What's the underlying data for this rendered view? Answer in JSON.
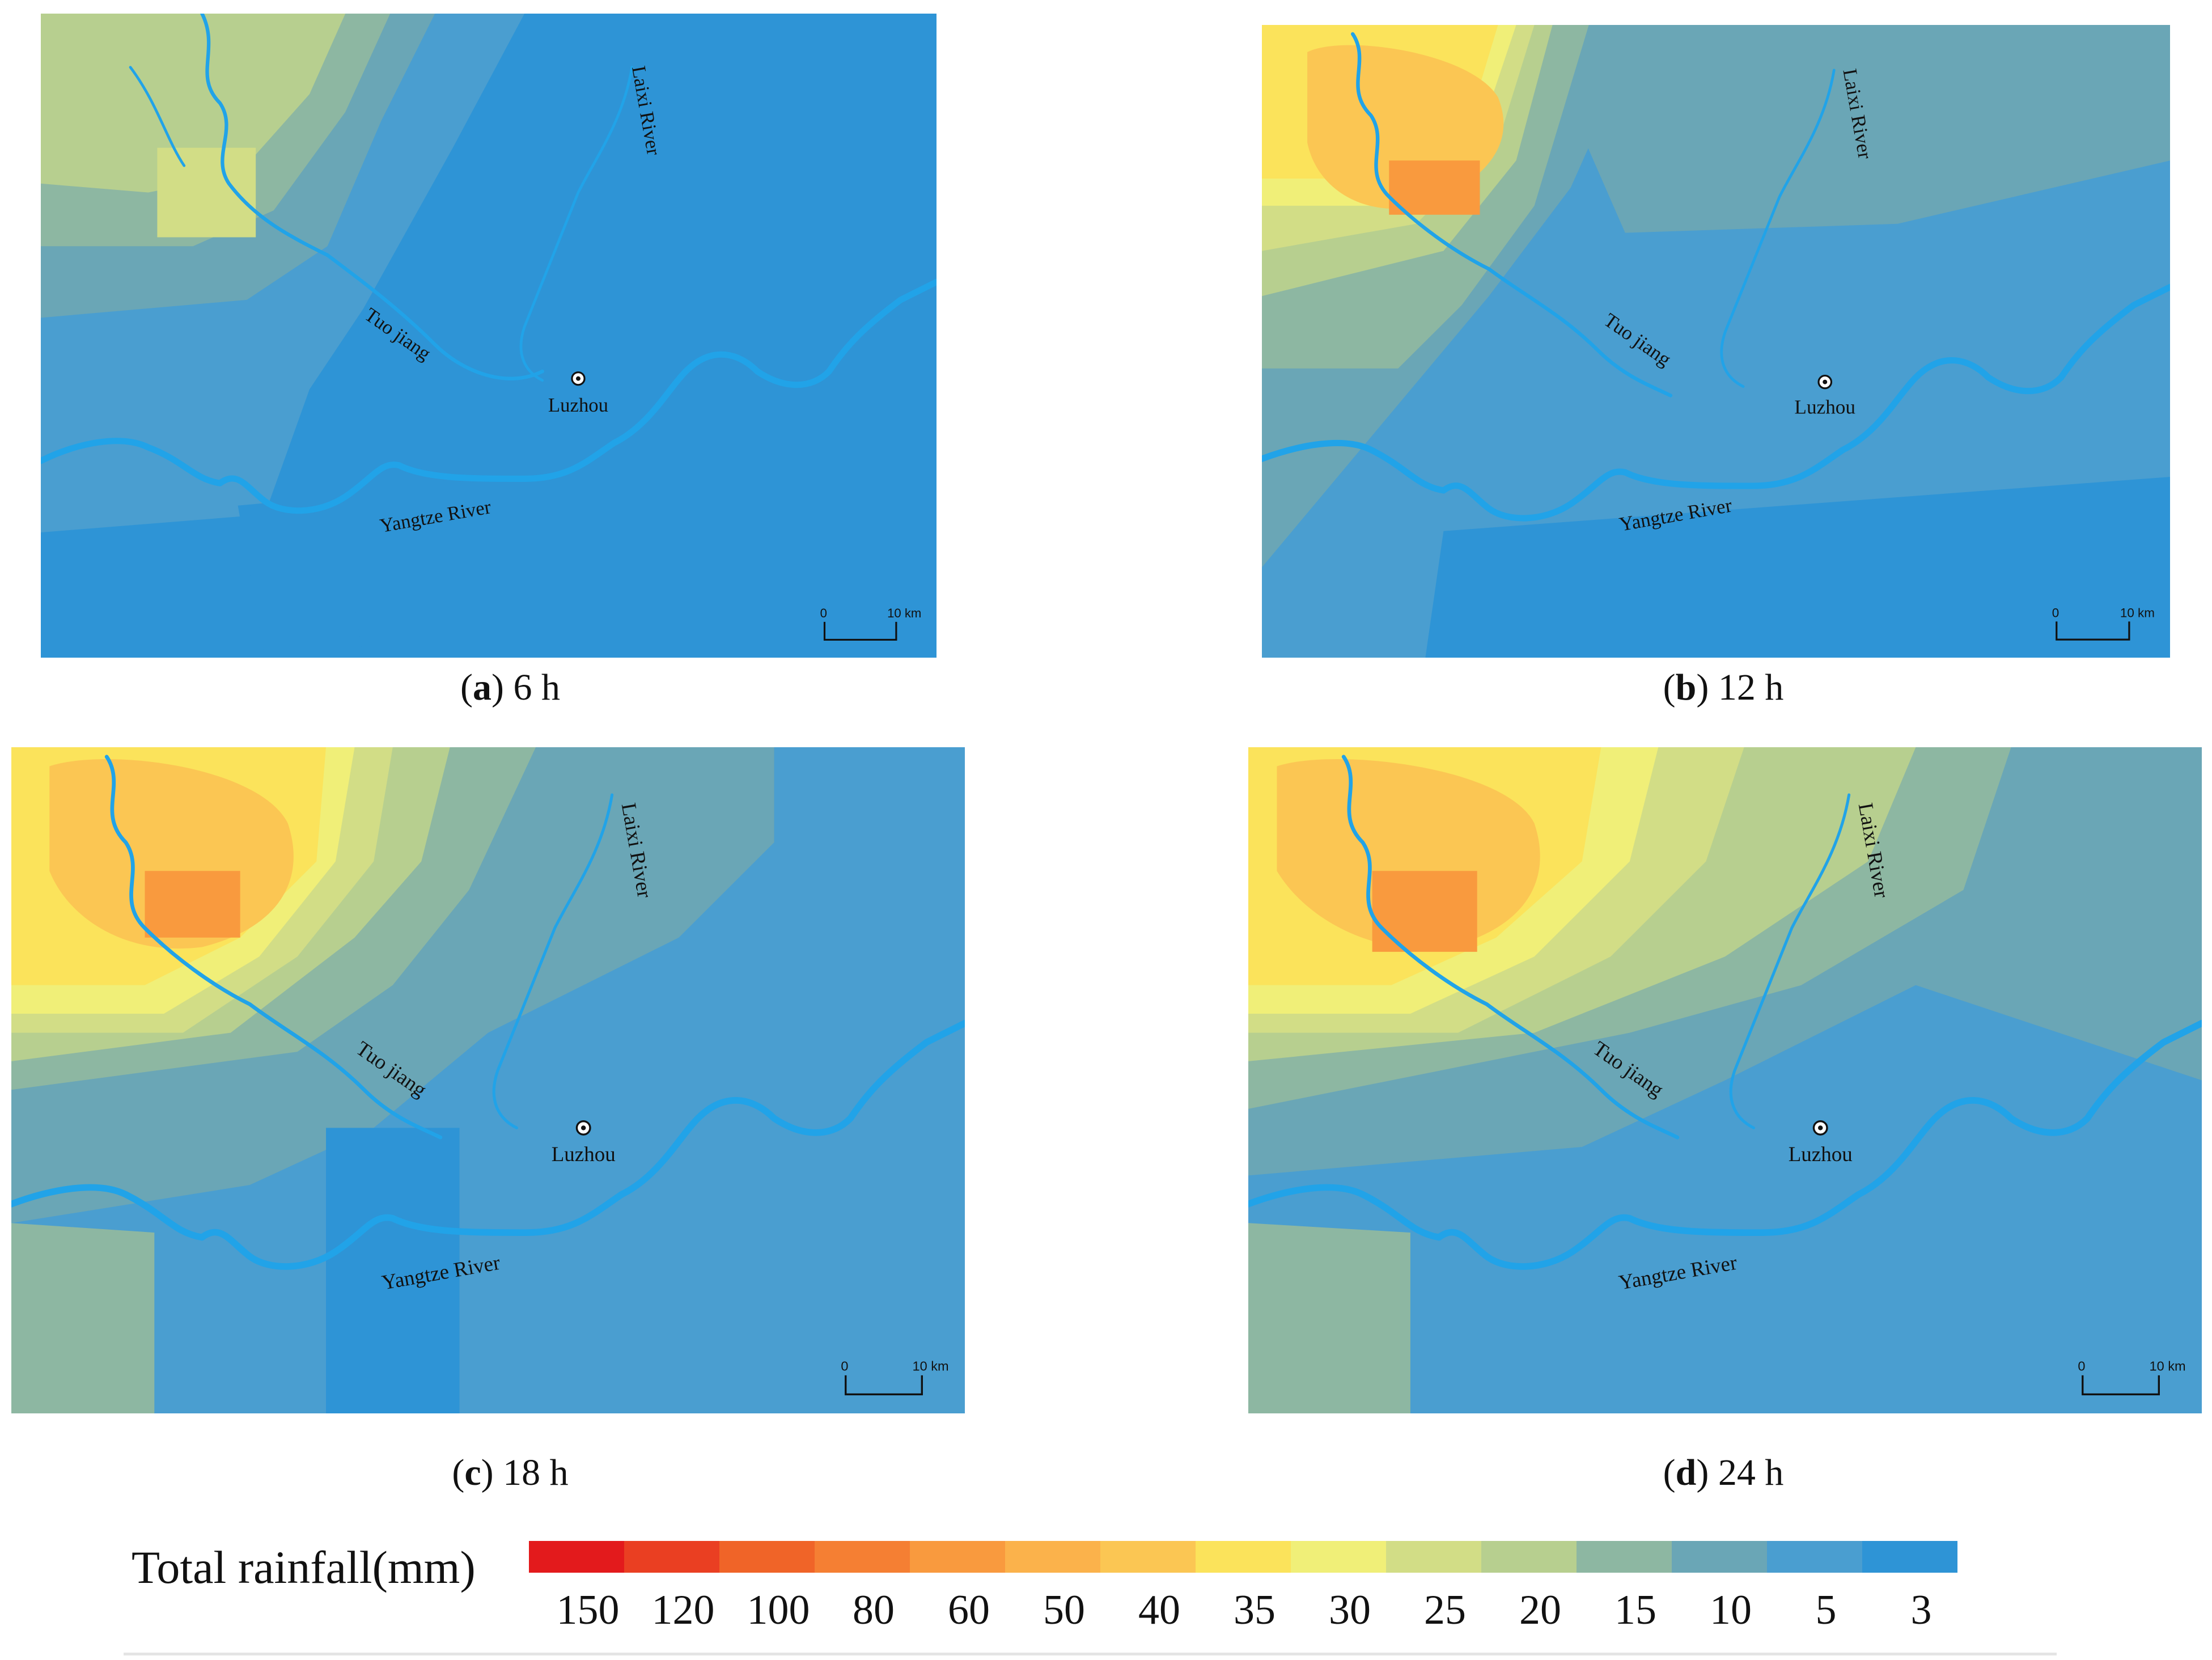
{
  "panels": [
    {
      "id": "a",
      "letter": "a",
      "time": "6 h"
    },
    {
      "id": "b",
      "letter": "b",
      "time": "12 h"
    },
    {
      "id": "c",
      "letter": "c",
      "time": "18 h"
    },
    {
      "id": "d",
      "letter": "d",
      "time": "24 h"
    }
  ],
  "map_labels": {
    "tuo": "Tuo jiang",
    "laixi": "Laixi River",
    "luzhou": "Luzhou",
    "yangtze": "Yangtze River"
  },
  "scale_bar": {
    "zero": "0",
    "distance": "10 km"
  },
  "legend": {
    "title": "Total rainfall(mm)",
    "colors": [
      "#e31a1c",
      "#ea3f22",
      "#f06428",
      "#f57f33",
      "#f99a3e",
      "#fbb24b",
      "#fbc653",
      "#fbe35b",
      "#f0ef78",
      "#d2dd86",
      "#b7cf8f",
      "#8db7a2",
      "#6aa6b6",
      "#4a9ed0",
      "#2e94d6"
    ],
    "ticks": [
      "150",
      "120",
      "100",
      "80",
      "60",
      "50",
      "40",
      "35",
      "30",
      "25",
      "20",
      "15",
      "10",
      "5",
      "3"
    ]
  },
  "colors": {
    "river": "#21a3e8",
    "background": "#ffffff"
  }
}
